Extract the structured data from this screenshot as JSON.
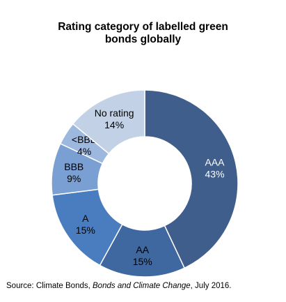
{
  "chart_data": {
    "type": "pie",
    "variant": "donut",
    "title_line1": "Rating category of labelled green",
    "title_line2": "bonds globally",
    "categories": [
      "AAA",
      "AA",
      "A",
      "BBB",
      "<BBB",
      "No rating"
    ],
    "value_labels": [
      "43%",
      "15%",
      "15%",
      "9%",
      "4%",
      "14%"
    ],
    "values": [
      43,
      15,
      15,
      9,
      4,
      14
    ],
    "colors": [
      "#3f5e8c",
      "#3f67a0",
      "#4a7dbf",
      "#7a9fd2",
      "#9cb8de",
      "#c3d1e6"
    ],
    "label_colors": [
      "#ffffff",
      "#000000",
      "#000000",
      "#000000",
      "#000000",
      "#000000"
    ],
    "start": "top, clockwise"
  },
  "source": {
    "prefix": "Source: Climate Bonds, ",
    "italic": "Bonds and Climate Change",
    "suffix": ", July 2016."
  }
}
